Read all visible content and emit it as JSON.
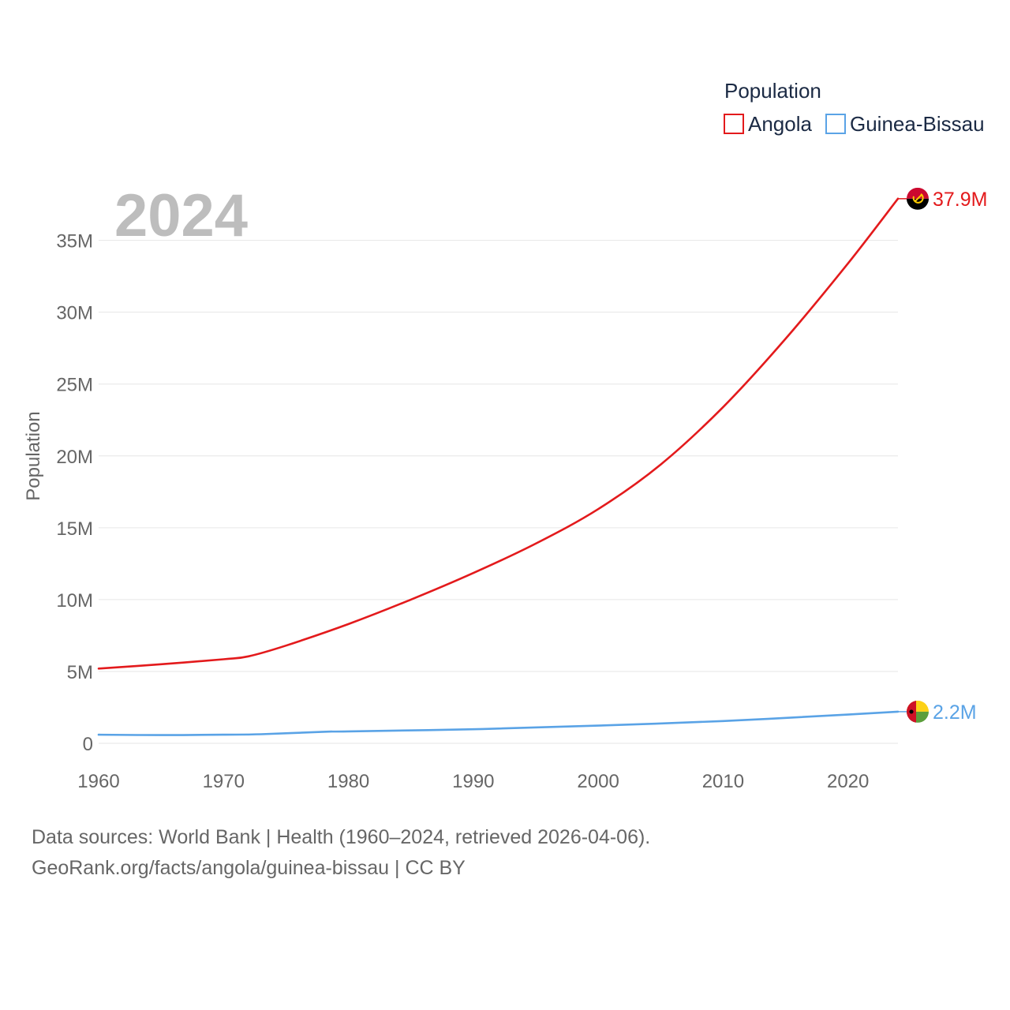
{
  "chart_data": {
    "type": "line",
    "year_label": "2024",
    "ylabel": "Population",
    "xlabel": "",
    "xlim": [
      1960,
      2024
    ],
    "ylim": [
      0,
      38000000
    ],
    "y_ticks": [
      {
        "value": 0,
        "label": "0"
      },
      {
        "value": 5000000,
        "label": "5M"
      },
      {
        "value": 10000000,
        "label": "10M"
      },
      {
        "value": 15000000,
        "label": "15M"
      },
      {
        "value": 20000000,
        "label": "20M"
      },
      {
        "value": 25000000,
        "label": "25M"
      },
      {
        "value": 30000000,
        "label": "30M"
      },
      {
        "value": 35000000,
        "label": "35M"
      }
    ],
    "x_ticks": [
      {
        "value": 1960,
        "label": "1960"
      },
      {
        "value": 1970,
        "label": "1970"
      },
      {
        "value": 1980,
        "label": "1980"
      },
      {
        "value": 1990,
        "label": "1990"
      },
      {
        "value": 2000,
        "label": "2000"
      },
      {
        "value": 2010,
        "label": "2010"
      },
      {
        "value": 2020,
        "label": "2020"
      }
    ],
    "legend": {
      "title": "Population",
      "position": "top-right"
    },
    "series": [
      {
        "name": "Angola",
        "color": "#e31a1c",
        "flag_icon": "angola-flag-icon",
        "end_label": "37.9M",
        "x": [
          1960,
          1965,
          1970,
          1972,
          1975,
          1980,
          1985,
          1990,
          1995,
          2000,
          2005,
          2010,
          2015,
          2020,
          2024
        ],
        "values": [
          5200000,
          5500000,
          5850000,
          6050000,
          6800000,
          8300000,
          10000000,
          11850000,
          13900000,
          16300000,
          19400000,
          23400000,
          28150000,
          33400000,
          37900000
        ]
      },
      {
        "name": "Guinea-Bissau",
        "color": "#5aa3e6",
        "flag_icon": "guinea-bissau-flag-icon",
        "end_label": "2.2M",
        "x": [
          1960,
          1965,
          1970,
          1973,
          1978,
          1980,
          1990,
          2000,
          2010,
          2020,
          2024
        ],
        "values": [
          600000,
          570000,
          600000,
          630000,
          800000,
          830000,
          980000,
          1230000,
          1550000,
          2000000,
          2200000
        ]
      }
    ]
  },
  "source": {
    "line1": "Data sources: World Bank | Health (1960–2024, retrieved 2026-04-06).",
    "line2": "GeoRank.org/facts/angola/guinea-bissau | CC BY"
  }
}
